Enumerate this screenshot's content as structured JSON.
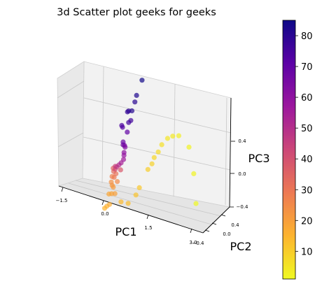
{
  "chart_data": {
    "type": "scatter",
    "projection": "3d",
    "title": "3d Scatter plot geeks for geeks",
    "xlabel": "PC1",
    "ylabel": "PC2",
    "zlabel": "PC3",
    "x_ticks": [
      "−1.5",
      "0.0",
      "1.5",
      "3.0"
    ],
    "y_ticks": [
      "−0.4",
      "0.0",
      "0.4"
    ],
    "z_ticks": [
      "−0.4",
      "0.0",
      "0.4"
    ],
    "xlim": [
      -1.5,
      3.0
    ],
    "ylim": [
      -0.4,
      0.4
    ],
    "zlim": [
      -0.4,
      0.4
    ],
    "grid": true,
    "colormap": "plasma_r",
    "marker_alpha": 0.7,
    "colorbar": {
      "position": "right",
      "min": 1,
      "max": 85,
      "ticks": [
        "10",
        "20",
        "30",
        "40",
        "50",
        "60",
        "70",
        "80"
      ],
      "colors": [
        "#f0f921",
        "#fdb42f",
        "#ed7953",
        "#cc4778",
        "#9c179e",
        "#5c01a6",
        "#0d0887"
      ]
    },
    "points": [
      {
        "x": 0.05,
        "y": 0.0,
        "z": 0.55,
        "c": 84
      },
      {
        "x": 0.0,
        "y": 0.0,
        "z": 0.43,
        "c": 82
      },
      {
        "x": 0.0,
        "y": 0.0,
        "z": 0.38,
        "c": 80
      },
      {
        "x": -0.02,
        "y": 0.0,
        "z": 0.31,
        "c": 81
      },
      {
        "x": -0.12,
        "y": 0.0,
        "z": 0.3,
        "c": 79
      },
      {
        "x": -0.15,
        "y": 0.0,
        "z": 0.29,
        "c": 78
      },
      {
        "x": 0.02,
        "y": 0.0,
        "z": 0.24,
        "c": 76
      },
      {
        "x": -0.03,
        "y": 0.0,
        "z": 0.22,
        "c": 75
      },
      {
        "x": -0.22,
        "y": 0.0,
        "z": 0.18,
        "c": 74
      },
      {
        "x": -0.18,
        "y": 0.0,
        "z": 0.17,
        "c": 72
      },
      {
        "x": 0.0,
        "y": 0.0,
        "z": 0.15,
        "c": 70
      },
      {
        "x": -0.05,
        "y": 0.0,
        "z": 0.07,
        "c": 68
      },
      {
        "x": -0.03,
        "y": 0.0,
        "z": 0.05,
        "c": 66
      },
      {
        "x": 0.02,
        "y": 0.0,
        "z": 0.05,
        "c": 64
      },
      {
        "x": 0.05,
        "y": 0.0,
        "z": 0.04,
        "c": 62
      },
      {
        "x": 0.06,
        "y": 0.0,
        "z": 0.0,
        "c": 60
      },
      {
        "x": 0.08,
        "y": 0.0,
        "z": -0.02,
        "c": 58
      },
      {
        "x": 0.1,
        "y": 0.0,
        "z": -0.05,
        "c": 56
      },
      {
        "x": 0.05,
        "y": 0.0,
        "z": -0.08,
        "c": 54
      },
      {
        "x": 0.0,
        "y": 0.0,
        "z": -0.1,
        "c": 50
      },
      {
        "x": -0.05,
        "y": 0.0,
        "z": -0.12,
        "c": 47
      },
      {
        "x": -0.1,
        "y": 0.0,
        "z": -0.12,
        "c": 44
      },
      {
        "x": -0.08,
        "y": 0.0,
        "z": -0.14,
        "c": 41
      },
      {
        "x": 0.09,
        "y": 0.0,
        "z": -0.13,
        "c": 38
      },
      {
        "x": -0.15,
        "y": 0.0,
        "z": -0.14,
        "c": 35
      },
      {
        "x": -0.11,
        "y": 0.0,
        "z": -0.16,
        "c": 33
      },
      {
        "x": -0.02,
        "y": 0.0,
        "z": -0.17,
        "c": 31
      },
      {
        "x": -0.05,
        "y": 0.0,
        "z": -0.2,
        "c": 29
      },
      {
        "x": -0.12,
        "y": 0.0,
        "z": -0.2,
        "c": 27
      },
      {
        "x": 0.08,
        "y": 0.0,
        "z": -0.22,
        "c": 25
      },
      {
        "x": -0.1,
        "y": 0.0,
        "z": -0.24,
        "c": 23
      },
      {
        "x": -0.05,
        "y": 0.0,
        "z": -0.26,
        "c": 22
      },
      {
        "x": 0.0,
        "y": 0.0,
        "z": -0.27,
        "c": 21
      },
      {
        "x": 0.1,
        "y": 0.0,
        "z": -0.31,
        "c": 20
      },
      {
        "x": 0.0,
        "y": 0.0,
        "z": -0.32,
        "c": 19
      },
      {
        "x": -0.08,
        "y": 0.0,
        "z": -0.33,
        "c": 18
      },
      {
        "x": 0.02,
        "y": 0.0,
        "z": -0.4,
        "c": 17
      },
      {
        "x": -0.05,
        "y": 0.0,
        "z": -0.42,
        "c": 16
      },
      {
        "x": -0.1,
        "y": 0.0,
        "z": -0.44,
        "c": 15
      },
      {
        "x": 0.35,
        "y": 0.0,
        "z": -0.35,
        "c": 14
      },
      {
        "x": 0.58,
        "y": 0.0,
        "z": -0.34,
        "c": 13
      },
      {
        "x": 0.75,
        "y": 0.0,
        "z": -0.26,
        "c": 12
      },
      {
        "x": 0.8,
        "y": 0.0,
        "z": -0.2,
        "c": 11
      },
      {
        "x": 0.92,
        "y": 0.0,
        "z": -0.05,
        "c": 10
      },
      {
        "x": 1.0,
        "y": 0.0,
        "z": 0.0,
        "c": 9
      },
      {
        "x": 1.02,
        "y": 0.0,
        "z": 0.05,
        "c": 8
      },
      {
        "x": 1.1,
        "y": 0.0,
        "z": 0.1,
        "c": 7
      },
      {
        "x": 1.15,
        "y": 0.0,
        "z": 0.16,
        "c": 6
      },
      {
        "x": 1.28,
        "y": 0.0,
        "z": 0.22,
        "c": 5
      },
      {
        "x": 1.42,
        "y": 0.0,
        "z": 0.25,
        "c": 4
      },
      {
        "x": 1.6,
        "y": 0.0,
        "z": 0.27,
        "c": 3
      },
      {
        "x": 2.0,
        "y": 0.0,
        "z": 0.22,
        "c": 2
      },
      {
        "x": 2.35,
        "y": 0.0,
        "z": 0.05,
        "c": 2
      },
      {
        "x": 2.65,
        "y": 0.0,
        "z": -0.15,
        "c": 1
      }
    ]
  }
}
